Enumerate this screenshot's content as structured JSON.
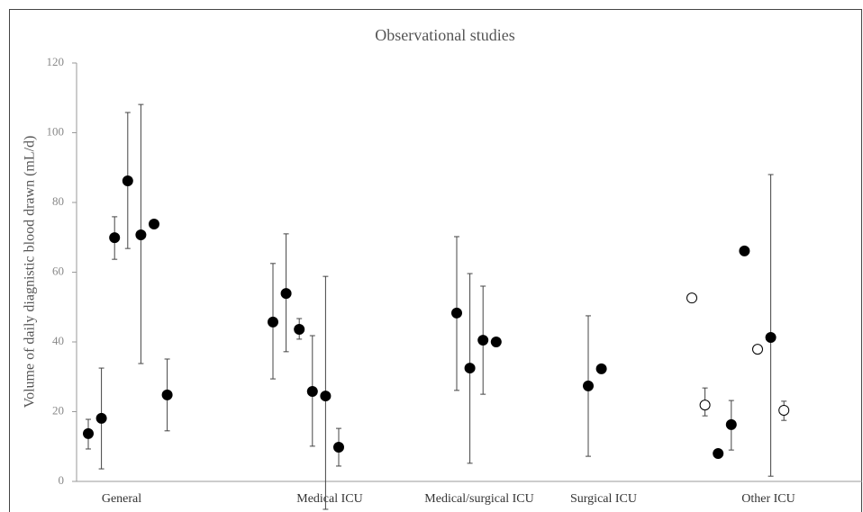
{
  "chart_data": {
    "type": "scatter",
    "title": "Observational studies",
    "y_label": "Volume of daily diagnistic blood drawn (mL/d)",
    "ylim": [
      0,
      120
    ],
    "yticks": [
      0,
      20,
      40,
      60,
      80,
      100,
      120
    ],
    "groups": [
      {
        "name": "General",
        "points": [
          {
            "value": 13.7,
            "upper": 17.8,
            "lower": 9.3,
            "filled": true
          },
          {
            "value": 18.1,
            "upper": 32.5,
            "lower": 3.6,
            "filled": true
          },
          {
            "value": 69.9,
            "upper": 75.9,
            "lower": 63.7,
            "filled": true
          },
          {
            "value": 86.2,
            "upper": 105.8,
            "lower": 66.8,
            "filled": true
          },
          {
            "value": 70.7,
            "upper": 108.1,
            "lower": 33.8,
            "filled": true
          },
          {
            "value": 73.8,
            "filled": true
          },
          {
            "value": 24.8,
            "upper": 35.1,
            "lower": 14.5,
            "filled": true
          }
        ]
      },
      {
        "name": "Medical ICU",
        "points": [
          {
            "value": 45.7,
            "upper": 62.5,
            "lower": 29.4,
            "filled": true
          },
          {
            "value": 53.9,
            "upper": 71.0,
            "lower": 37.2,
            "filled": true
          },
          {
            "value": 43.6,
            "upper": 46.7,
            "lower": 40.8,
            "filled": true
          },
          {
            "value": 25.8,
            "upper": 41.8,
            "lower": 10.1,
            "filled": true
          },
          {
            "value": 24.5,
            "upper": 58.8,
            "lower": -8,
            "filled": true
          },
          {
            "value": 9.8,
            "upper": 15.2,
            "lower": 4.4,
            "filled": true
          }
        ]
      },
      {
        "name": "Medical/surgical ICU",
        "points": [
          {
            "value": 48.3,
            "upper": 70.2,
            "lower": 26.1,
            "filled": true
          },
          {
            "value": 32.5,
            "upper": 59.6,
            "lower": 5.2,
            "filled": true
          },
          {
            "value": 40.5,
            "upper": 56.0,
            "lower": 25.0,
            "filled": true
          },
          {
            "value": 40.0,
            "filled": true
          }
        ]
      },
      {
        "name": "Surgical ICU",
        "points": [
          {
            "value": 27.4,
            "upper": 47.5,
            "lower": 7.2,
            "filled": true
          },
          {
            "value": 32.3,
            "filled": true
          }
        ]
      },
      {
        "name": "Other ICU",
        "points": [
          {
            "value": 52.6,
            "filled": false
          },
          {
            "value": 21.9,
            "upper": 26.8,
            "lower": 18.8,
            "filled": false
          },
          {
            "value": 8.0,
            "upper": 9.0,
            "lower": 7.0,
            "filled": true
          },
          {
            "value": 16.3,
            "upper": 23.2,
            "lower": 9.0,
            "filled": true
          },
          {
            "value": 66.1,
            "filled": true
          },
          {
            "value": 37.9,
            "filled": false
          },
          {
            "value": 41.3,
            "upper": 88.0,
            "lower": 1.5,
            "filled": true
          },
          {
            "value": 20.4,
            "upper": 23.0,
            "lower": 17.5,
            "filled": false
          }
        ]
      }
    ]
  }
}
